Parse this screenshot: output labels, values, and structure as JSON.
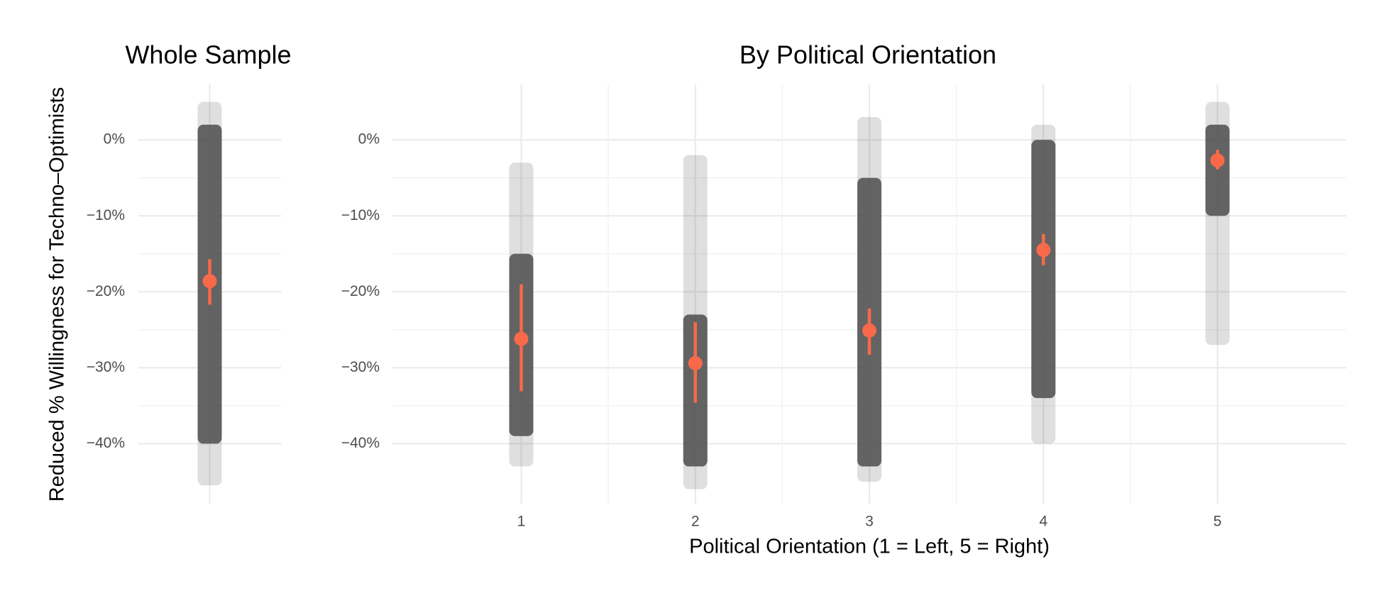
{
  "y_label": "Reduced % Willingness for Techno–Optimists",
  "chart_data": [
    {
      "type": "strip",
      "title": "Whole Sample",
      "categories": [
        null
      ],
      "mean": [
        -18.6
      ],
      "ci_low": [
        -21.7
      ],
      "ci_high": [
        -15.7
      ],
      "points_min": [
        -45.5
      ],
      "points_max": [
        5
      ],
      "core_min": [
        -40
      ],
      "core_max": [
        2
      ],
      "ylim": [
        -47.9,
        7.3
      ],
      "yticks": [
        {
          "value": -40,
          "label": "−40%"
        },
        {
          "value": -30,
          "label": "−30%"
        },
        {
          "value": -20,
          "label": "−20%"
        },
        {
          "value": -10,
          "label": "−10%"
        },
        {
          "value": 0,
          "label": "0%"
        }
      ],
      "point_color": "#4d4d4d",
      "mean_color": "#f8694a",
      "grid": true
    },
    {
      "type": "strip",
      "title": "By Political Orientation",
      "x_label": "Political Orientation (1 = Left, 5 = Right)",
      "x": [
        1,
        2,
        3,
        4,
        5
      ],
      "mean": [
        -26.2,
        -29.4,
        -25.1,
        -14.5,
        -2.7
      ],
      "ci_low": [
        -33.1,
        -34.6,
        -28.3,
        -16.5,
        -3.9
      ],
      "ci_high": [
        -19.0,
        -24.0,
        -22.2,
        -12.4,
        -1.3
      ],
      "points_min": [
        -43,
        -46,
        -45,
        -40,
        -27
      ],
      "points_max": [
        -3,
        -2,
        3,
        2,
        5
      ],
      "core_min": [
        -39,
        -43,
        -43,
        -34,
        -10
      ],
      "core_max": [
        -15,
        -23,
        -5,
        0,
        2
      ],
      "xlim": [
        0.26,
        5.74
      ],
      "xticks": [
        1,
        2,
        3,
        4,
        5
      ],
      "ylim": [
        -47.9,
        7.3
      ],
      "yticks": [
        {
          "value": -40,
          "label": "−40%"
        },
        {
          "value": -30,
          "label": "−30%"
        },
        {
          "value": -20,
          "label": "−20%"
        },
        {
          "value": -10,
          "label": "−10%"
        },
        {
          "value": 0,
          "label": "0%"
        }
      ],
      "point_color": "#4d4d4d",
      "mean_color": "#f8694a",
      "grid": true
    }
  ]
}
